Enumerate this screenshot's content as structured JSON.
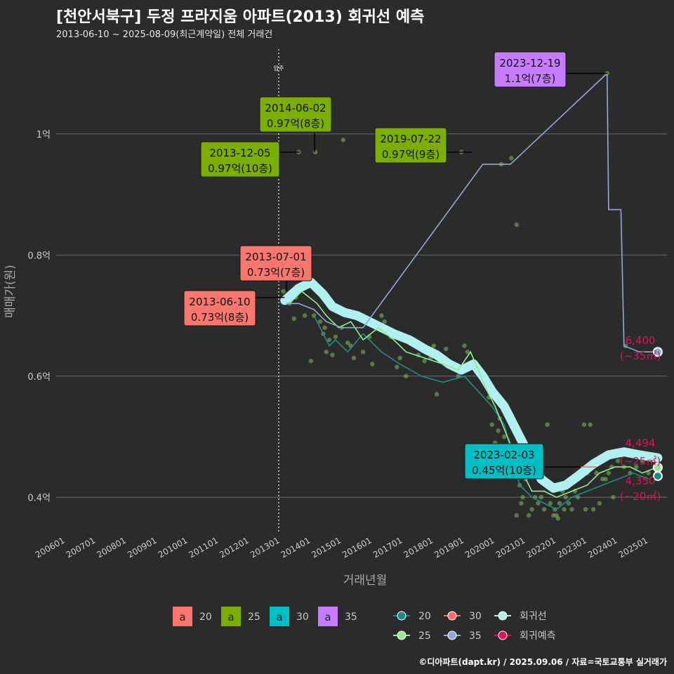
{
  "header": {
    "title": "[천안서북구] 두정 프라지움 아파트(2013) 회귀선 예측",
    "subtitle": "2013-06-10 ~ 2025-08-09(최근계약일) 전체 거래건"
  },
  "caption": "©디아파트(dapt.kr) / 2025.09.06 / 자료=국토교통부 실거래가",
  "chart_data": {
    "type": "scatter",
    "xlabel": "거래년월",
    "ylabel": "매매가(원)",
    "xlim": [
      2006.0,
      2025.9
    ],
    "ylim": [
      0.34,
      1.14
    ],
    "grid": true,
    "x_ticks": [
      "200601",
      "200701",
      "200801",
      "200901",
      "201001",
      "201101",
      "201201",
      "201301",
      "201401",
      "201501",
      "201601",
      "201701",
      "201801",
      "201901",
      "202001",
      "202101",
      "202201",
      "202301",
      "202401",
      "202501"
    ],
    "y_ticks": [
      {
        "value": 0.4,
        "label": "0.4억"
      },
      {
        "value": 0.6,
        "label": "0.6억"
      },
      {
        "value": 0.8,
        "label": "0.8억"
      },
      {
        "value": 1.0,
        "label": "1억"
      }
    ],
    "move_in": {
      "x": 2013.25,
      "label": "입주"
    },
    "colors": {
      "20": "#f8766d",
      "25": "#7cae00",
      "30": "#00bfc4",
      "35": "#c77cff",
      "line20": "#1f8a8a",
      "line25": "#90ee90",
      "line30": "#ff6b6b",
      "line35": "#8fa9d8",
      "reg": "#b0f0f0",
      "pred": "#e0115f"
    },
    "legend_area": {
      "title": "",
      "items": [
        {
          "key": "20",
          "label": "20"
        },
        {
          "key": "25",
          "label": "25"
        },
        {
          "key": "30",
          "label": "30"
        },
        {
          "key": "35",
          "label": "35"
        }
      ]
    },
    "legend_line": {
      "items": [
        {
          "key": "line20",
          "label": "20",
          "row": 0,
          "col": 0
        },
        {
          "key": "line30",
          "label": "30",
          "row": 0,
          "col": 1
        },
        {
          "key": "reg",
          "label": "회귀선",
          "row": 0,
          "col": 2
        },
        {
          "key": "line25",
          "label": "25",
          "row": 1,
          "col": 0
        },
        {
          "key": "line35",
          "label": "35",
          "row": 1,
          "col": 1
        },
        {
          "key": "pred",
          "label": "회귀예측",
          "row": 1,
          "col": 2
        }
      ]
    },
    "series": [
      {
        "name": "20",
        "color_key": "line20",
        "points": [
          [
            2014.4,
            0.7
          ],
          [
            2014.6,
            0.68
          ],
          [
            2014.9,
            0.65
          ],
          [
            2015.1,
            0.66
          ],
          [
            2015.5,
            0.64
          ],
          [
            2016.0,
            0.67
          ],
          [
            2016.6,
            0.64
          ],
          [
            2017.2,
            0.62
          ],
          [
            2017.9,
            0.6
          ],
          [
            2018.6,
            0.59
          ],
          [
            2019.3,
            0.6
          ],
          [
            2020.2,
            0.55
          ],
          [
            2020.6,
            0.52
          ],
          [
            2021.1,
            0.42
          ],
          [
            2021.5,
            0.4
          ],
          [
            2021.9,
            0.39
          ],
          [
            2022.3,
            0.38
          ],
          [
            2022.8,
            0.4
          ],
          [
            2023.3,
            0.41
          ],
          [
            2023.8,
            0.42
          ],
          [
            2024.3,
            0.43
          ],
          [
            2024.8,
            0.44
          ],
          [
            2025.3,
            0.43
          ]
        ]
      },
      {
        "name": "25",
        "color_key": "line25",
        "points": [
          [
            2013.6,
            0.72
          ],
          [
            2014.0,
            0.74
          ],
          [
            2014.5,
            0.72
          ],
          [
            2014.8,
            0.7
          ],
          [
            2015.2,
            0.68
          ],
          [
            2015.6,
            0.69
          ],
          [
            2016.0,
            0.66
          ],
          [
            2016.5,
            0.68
          ],
          [
            2017.0,
            0.66
          ],
          [
            2017.4,
            0.64
          ],
          [
            2018.0,
            0.63
          ],
          [
            2018.6,
            0.62
          ],
          [
            2019.1,
            0.61
          ],
          [
            2019.5,
            0.64
          ],
          [
            2020.0,
            0.58
          ],
          [
            2020.3,
            0.55
          ],
          [
            2020.7,
            0.5
          ],
          [
            2021.1,
            0.45
          ],
          [
            2021.5,
            0.41
          ],
          [
            2021.9,
            0.41
          ],
          [
            2022.3,
            0.4
          ],
          [
            2022.8,
            0.41
          ],
          [
            2023.3,
            0.42
          ],
          [
            2023.7,
            0.44
          ],
          [
            2024.2,
            0.45
          ],
          [
            2024.7,
            0.45
          ],
          [
            2025.1,
            0.44
          ],
          [
            2025.6,
            0.45
          ]
        ]
      },
      {
        "name": "30",
        "color_key": "line30",
        "points": [
          [
            2023.1,
            0.45
          ],
          [
            2023.6,
            0.45
          ]
        ]
      },
      {
        "name": "35",
        "color_key": "line35",
        "points": [
          [
            2013.5,
            0.72
          ],
          [
            2013.9,
            0.72
          ],
          [
            2014.4,
            0.71
          ],
          [
            2014.8,
            0.69
          ],
          [
            2015.3,
            0.68
          ],
          [
            2015.7,
            0.68
          ],
          [
            2016.0,
            0.68
          ],
          [
            2019.9,
            0.95
          ],
          [
            2020.8,
            0.95
          ],
          [
            2023.95,
            1.1
          ],
          [
            2024.0,
            0.875
          ],
          [
            2024.4,
            0.875
          ],
          [
            2024.5,
            0.65
          ],
          [
            2025.0,
            0.64
          ],
          [
            2025.6,
            0.64
          ]
        ]
      }
    ],
    "regression": [
      [
        2013.45,
        0.725
      ],
      [
        2013.9,
        0.745
      ],
      [
        2014.3,
        0.755
      ],
      [
        2014.7,
        0.735
      ],
      [
        2015.0,
        0.715
      ],
      [
        2015.4,
        0.705
      ],
      [
        2015.8,
        0.7
      ],
      [
        2016.2,
        0.69
      ],
      [
        2016.6,
        0.68
      ],
      [
        2017.0,
        0.67
      ],
      [
        2017.5,
        0.66
      ],
      [
        2018.0,
        0.645
      ],
      [
        2018.4,
        0.635
      ],
      [
        2018.8,
        0.62
      ],
      [
        2019.2,
        0.61
      ],
      [
        2019.6,
        0.62
      ],
      [
        2019.9,
        0.6
      ],
      [
        2020.2,
        0.575
      ],
      [
        2020.6,
        0.55
      ],
      [
        2021.0,
        0.51
      ],
      [
        2021.4,
        0.47
      ],
      [
        2021.8,
        0.43
      ],
      [
        2022.2,
        0.415
      ],
      [
        2022.6,
        0.42
      ],
      [
        2023.0,
        0.435
      ],
      [
        2023.5,
        0.455
      ],
      [
        2024.0,
        0.47
      ],
      [
        2024.5,
        0.475
      ],
      [
        2025.0,
        0.47
      ],
      [
        2025.6,
        0.465
      ]
    ],
    "predictions": [
      {
        "x": 2025.6,
        "y": 0.64,
        "color_key": "line35",
        "value": "6,400",
        "area": "(~35㎡)"
      },
      {
        "x": 2025.6,
        "y": 0.449,
        "color_key": "line25",
        "value": "4,494",
        "area": "(~25㎡)"
      },
      {
        "x": 2025.6,
        "y": 0.435,
        "color_key": "line20",
        "value": "4,350",
        "area": "(~20㎡)"
      }
    ],
    "scatter": [
      [
        2013.4,
        0.74
      ],
      [
        2013.6,
        0.72
      ],
      [
        2013.75,
        0.695
      ],
      [
        2013.8,
        0.73
      ],
      [
        2014.1,
        0.7
      ],
      [
        2014.3,
        0.625
      ],
      [
        2014.4,
        0.7
      ],
      [
        2014.5,
        0.74
      ],
      [
        2014.6,
        0.69
      ],
      [
        2014.7,
        0.67
      ],
      [
        2014.75,
        0.68
      ],
      [
        2014.8,
        0.64
      ],
      [
        2014.9,
        0.66
      ],
      [
        2015.0,
        0.635
      ],
      [
        2015.1,
        0.665
      ],
      [
        2015.3,
        0.68
      ],
      [
        2015.5,
        0.655
      ],
      [
        2015.6,
        0.65
      ],
      [
        2015.7,
        0.63
      ],
      [
        2016.0,
        0.64
      ],
      [
        2016.2,
        0.665
      ],
      [
        2016.3,
        0.62
      ],
      [
        2016.6,
        0.7
      ],
      [
        2016.7,
        0.69
      ],
      [
        2017.0,
        0.67
      ],
      [
        2017.1,
        0.615
      ],
      [
        2017.2,
        0.63
      ],
      [
        2017.4,
        0.6
      ],
      [
        2017.6,
        0.66
      ],
      [
        2017.8,
        0.635
      ],
      [
        2018.0,
        0.625
      ],
      [
        2018.3,
        0.65
      ],
      [
        2018.4,
        0.57
      ],
      [
        2018.7,
        0.645
      ],
      [
        2018.9,
        0.62
      ],
      [
        2019.1,
        0.6
      ],
      [
        2019.3,
        0.65
      ],
      [
        2019.4,
        0.64
      ],
      [
        2019.6,
        0.625
      ],
      [
        2019.8,
        0.6
      ],
      [
        2019.9,
        0.595
      ],
      [
        2020.1,
        0.565
      ],
      [
        2020.2,
        0.52
      ],
      [
        2020.3,
        0.49
      ],
      [
        2020.4,
        0.51
      ],
      [
        2020.6,
        0.5
      ],
      [
        2020.9,
        0.46
      ],
      [
        2021.1,
        0.42
      ],
      [
        2021.2,
        0.4
      ],
      [
        2021.3,
        0.43
      ],
      [
        2021.4,
        0.37
      ],
      [
        2021.5,
        0.38
      ],
      [
        2021.6,
        0.4
      ],
      [
        2021.7,
        0.39
      ],
      [
        2021.8,
        0.4
      ],
      [
        2021.9,
        0.38
      ],
      [
        2022.0,
        0.52
      ],
      [
        2022.1,
        0.39
      ],
      [
        2022.2,
        0.37
      ],
      [
        2022.25,
        0.38
      ],
      [
        2022.3,
        0.37
      ],
      [
        2022.4,
        0.39
      ],
      [
        2022.5,
        0.41
      ],
      [
        2022.6,
        0.4
      ],
      [
        2022.7,
        0.39
      ],
      [
        2022.8,
        0.38
      ],
      [
        2022.9,
        0.41
      ],
      [
        2023.0,
        0.4
      ],
      [
        2023.2,
        0.52
      ],
      [
        2023.3,
        0.44
      ],
      [
        2023.4,
        0.52
      ],
      [
        2023.6,
        0.44
      ],
      [
        2023.8,
        0.43
      ],
      [
        2023.9,
        0.43
      ],
      [
        2024.0,
        0.44
      ],
      [
        2024.1,
        0.45
      ],
      [
        2024.3,
        0.46
      ],
      [
        2024.5,
        0.45
      ],
      [
        2024.7,
        0.44
      ],
      [
        2024.9,
        0.45
      ],
      [
        2025.1,
        0.46
      ],
      [
        2025.3,
        0.44
      ],
      [
        2025.5,
        0.45
      ],
      [
        2023.7,
        0.39
      ],
      [
        2023.5,
        0.38
      ],
      [
        2021.0,
        0.37
      ],
      [
        2022.35,
        0.365
      ],
      [
        2013.7,
        0.74
      ],
      [
        2014.7,
        0.73
      ],
      [
        2016.9,
        0.665
      ],
      [
        2018.2,
        0.63
      ],
      [
        2020.45,
        0.53
      ],
      [
        2021.15,
        0.39
      ],
      [
        2022.55,
        0.38
      ],
      [
        2023.05,
        0.44
      ],
      [
        2024.15,
        0.4
      ],
      [
        2023.25,
        0.38
      ],
      [
        2024.7,
        0.47
      ],
      [
        2025.2,
        0.47
      ],
      [
        2013.9,
        0.97
      ],
      [
        2014.44,
        0.97
      ],
      [
        2015.35,
        0.99
      ],
      [
        2019.2,
        0.97
      ],
      [
        2020.5,
        0.95
      ],
      [
        2020.83,
        0.96
      ],
      [
        2021.0,
        0.85
      ],
      [
        2023.95,
        1.1
      ],
      [
        2024.55,
        0.65
      ]
    ],
    "callouts": [
      {
        "date": "2013-06-10",
        "value": "0.73억(8층)",
        "x": 2013.44,
        "y": 0.73,
        "color_key": "20"
      },
      {
        "date": "2013-07-01",
        "value": "0.73억(7층)",
        "x": 2013.5,
        "y": 0.74,
        "color_key": "20"
      },
      {
        "date": "2013-12-05",
        "value": "0.97억(10층)",
        "x": 2013.93,
        "y": 0.97,
        "color_key": "25"
      },
      {
        "date": "2014-06-02",
        "value": "0.97억(8층)",
        "x": 2014.42,
        "y": 0.97,
        "color_key": "25"
      },
      {
        "date": "2019-07-22",
        "value": "0.97억(9층)",
        "x": 2019.55,
        "y": 0.97,
        "color_key": "25"
      },
      {
        "date": "2023-02-03",
        "value": "0.45억(10층)",
        "x": 2023.09,
        "y": 0.45,
        "color_key": "30"
      },
      {
        "date": "2023-12-19",
        "value": "1.1억(7층)",
        "x": 2023.97,
        "y": 1.1,
        "color_key": "35"
      }
    ]
  }
}
